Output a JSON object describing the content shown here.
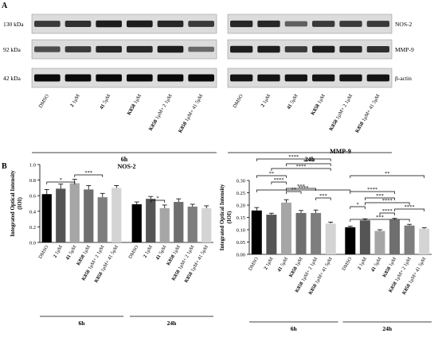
{
  "panel_a": {
    "letter": "A",
    "mw": [
      "130 kDa",
      "92 kDa",
      "42 kDa"
    ],
    "proteins": [
      "NOS-2",
      "MMP-9",
      "β-actin"
    ],
    "time_labels": [
      "6h",
      "24h"
    ],
    "lanes": [
      {
        "b": "",
        "t": "DMSO"
      },
      {
        "b": "2",
        "t": " 1μM"
      },
      {
        "b": "41",
        "t": " 5μM"
      },
      {
        "b": "K858",
        "t": " 1μM"
      },
      {
        "b": "K858",
        "t": " 1μM+ 2 1μM"
      },
      {
        "b": "K858",
        "t": " 1μM+ 41 5μM"
      }
    ],
    "band_intensity": {
      "nos2_6h": [
        0.75,
        0.8,
        0.9,
        0.9,
        0.85,
        0.75
      ],
      "mmp9_6h": [
        0.65,
        0.75,
        0.85,
        0.85,
        0.9,
        0.5
      ],
      "actin_6h": [
        1,
        1,
        1,
        1,
        1,
        1
      ],
      "nos2_24h": [
        0.85,
        0.85,
        0.55,
        0.75,
        0.75,
        0.75
      ],
      "mmp9_24h": [
        0.9,
        0.9,
        0.75,
        0.9,
        0.85,
        0.8
      ],
      "actin_24h": [
        0.95,
        0.95,
        0.95,
        0.95,
        0.95,
        0.95
      ]
    }
  },
  "panel_b": {
    "letter": "B"
  },
  "chart_data": [
    {
      "type": "bar",
      "title": "NOS-2",
      "ylabel": "Integrated Optical Intensity (IOI)",
      "ylim": [
        0,
        1.0
      ],
      "yticks": [
        "0.0",
        "0.2",
        "0.4",
        "0.6",
        "0.8",
        "1.0"
      ],
      "categories": [
        "DMSO",
        "2 1μM",
        "41 5μM",
        "K858 1μM",
        "K858 1μM+ 2 1μM",
        "K858 1μM+ 41 5μM",
        "DMSO",
        "2 1μM",
        "41 5μM",
        "K858 1μM",
        "K858 1μM+ 2 1μM",
        "K858 1μM+ 41 5μM"
      ],
      "groups": [
        "6h",
        "24h"
      ],
      "values": [
        0.62,
        0.69,
        0.76,
        0.68,
        0.58,
        0.7,
        0.49,
        0.56,
        0.44,
        0.52,
        0.46,
        0.44
      ],
      "errors": [
        0.06,
        0.06,
        0.05,
        0.05,
        0.05,
        0.03,
        0.03,
        0.03,
        0.04,
        0.04,
        0.03,
        0.03
      ],
      "colors": [
        "#000000",
        "#555555",
        "#a6a6a6",
        "#6f6f6f",
        "#7e7e7e",
        "#d4d4d4",
        "#000000",
        "#555555",
        "#a6a6a6",
        "#6f6f6f",
        "#7e7e7e",
        "#d4d4d4"
      ],
      "significance": [
        {
          "from": 0,
          "to": 2,
          "label": "*"
        },
        {
          "from": 2,
          "to": 4,
          "label": "***"
        },
        {
          "from": 7,
          "to": 8,
          "label": "*"
        }
      ]
    },
    {
      "type": "bar",
      "title": "MMP-9",
      "ylabel": "Integrated Optical Intensity (IOI)",
      "ylim": [
        0,
        0.3
      ],
      "yticks": [
        "0.00",
        "0.05",
        "0.10",
        "0.15",
        "0.20",
        "0.25",
        "0.30"
      ],
      "categories": [
        "DMSO",
        "2 1μM",
        "41 5μM",
        "K858 1μM",
        "K858 1μM+ 2 1μM",
        "K858 1μM+ 41 5μM",
        "DMSO",
        "2 1μM",
        "41 5μM",
        "K858 1μM",
        "K858 1μM+ 2 1μM",
        "K858 1μM+ 41 5μM"
      ],
      "groups": [
        "6h",
        "24h"
      ],
      "values": [
        0.178,
        0.161,
        0.21,
        0.168,
        0.168,
        0.125,
        0.11,
        0.138,
        0.095,
        0.14,
        0.117,
        0.104
      ],
      "errors": [
        0.012,
        0.006,
        0.012,
        0.01,
        0.012,
        0.006,
        0.004,
        0.006,
        0.005,
        0.006,
        0.005,
        0.004
      ],
      "colors": [
        "#000000",
        "#555555",
        "#a6a6a6",
        "#6f6f6f",
        "#7e7e7e",
        "#d4d4d4",
        "#000000",
        "#555555",
        "#a6a6a6",
        "#6f6f6f",
        "#7e7e7e",
        "#d4d4d4"
      ],
      "significance": [
        {
          "from": 0,
          "to": 5,
          "label": "****"
        },
        {
          "from": 2,
          "to": 5,
          "label": "****"
        },
        {
          "from": 1,
          "to": 5,
          "label": "****"
        },
        {
          "from": 0,
          "to": 2,
          "label": "**"
        },
        {
          "from": 1,
          "to": 2,
          "label": "****"
        },
        {
          "from": 2,
          "to": 4,
          "label": "***"
        },
        {
          "from": 2,
          "to": 3,
          "label": "**"
        },
        {
          "from": 4,
          "to": 5,
          "label": "***"
        },
        {
          "from": 0,
          "to": 6,
          "label": "****"
        },
        {
          "from": 6,
          "to": 11,
          "label": "**"
        },
        {
          "from": 6,
          "to": 9,
          "label": "****"
        },
        {
          "from": 7,
          "to": 9,
          "label": "***"
        },
        {
          "from": 7,
          "to": 10,
          "label": "****"
        },
        {
          "from": 9,
          "to": 11,
          "label": "****"
        },
        {
          "from": 6,
          "to": 7,
          "label": "*"
        },
        {
          "from": 8,
          "to": 9,
          "label": "****"
        },
        {
          "from": 6,
          "to": 10,
          "label": "***"
        }
      ]
    }
  ]
}
